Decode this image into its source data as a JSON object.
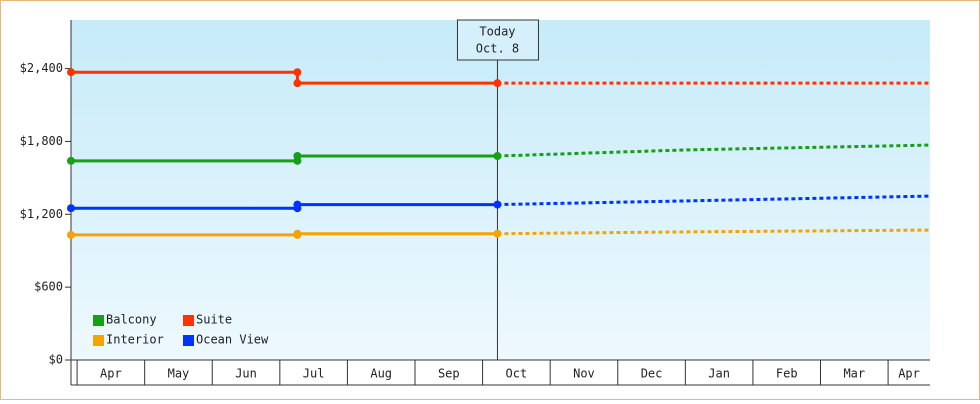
{
  "chart_data": {
    "type": "line",
    "categories": [
      "Apr",
      "May",
      "Jun",
      "Jul",
      "Aug",
      "Sep",
      "Oct",
      "Nov",
      "Dec",
      "Jan",
      "Feb",
      "Mar",
      "Apr"
    ],
    "xlim": [
      -0.09,
      12.62
    ],
    "ylim": [
      0,
      2800
    ],
    "yticks": [
      {
        "value": 0,
        "label": "$0"
      },
      {
        "value": 600,
        "label": "$600"
      },
      {
        "value": 1200,
        "label": "$1,200"
      },
      {
        "value": 1800,
        "label": "$1,800"
      },
      {
        "value": 2400,
        "label": "$2,400"
      }
    ],
    "annotation": {
      "x": 6.22,
      "title": "Today",
      "label": "Oct. 8"
    },
    "series": [
      {
        "name": "Balcony",
        "color": "#15a015",
        "x": [
          -0.09,
          3.26,
          3.26,
          6.22
        ],
        "values": [
          1640,
          1640,
          1680,
          1680
        ],
        "forecast": {
          "x": [
            6.22,
            9,
            12.62
          ],
          "values": [
            1680,
            1730,
            1770
          ]
        }
      },
      {
        "name": "Suite",
        "color": "#ff3300",
        "x": [
          -0.09,
          3.26,
          3.26,
          6.22
        ],
        "values": [
          2370,
          2370,
          2280,
          2280
        ],
        "forecast": {
          "x": [
            6.22,
            12.62
          ],
          "values": [
            2280,
            2280
          ]
        }
      },
      {
        "name": "Interior",
        "color": "#f5a300",
        "x": [
          -0.09,
          3.26,
          3.26,
          6.22
        ],
        "values": [
          1030,
          1030,
          1040,
          1040
        ],
        "forecast": {
          "x": [
            6.22,
            9,
            12.62
          ],
          "values": [
            1040,
            1055,
            1070
          ]
        }
      },
      {
        "name": "Ocean View",
        "color": "#0033ff",
        "x": [
          -0.09,
          3.26,
          3.26,
          6.22
        ],
        "values": [
          1250,
          1250,
          1280,
          1280
        ],
        "forecast": {
          "x": [
            6.22,
            9,
            12.62
          ],
          "values": [
            1280,
            1310,
            1350
          ]
        }
      }
    ]
  }
}
